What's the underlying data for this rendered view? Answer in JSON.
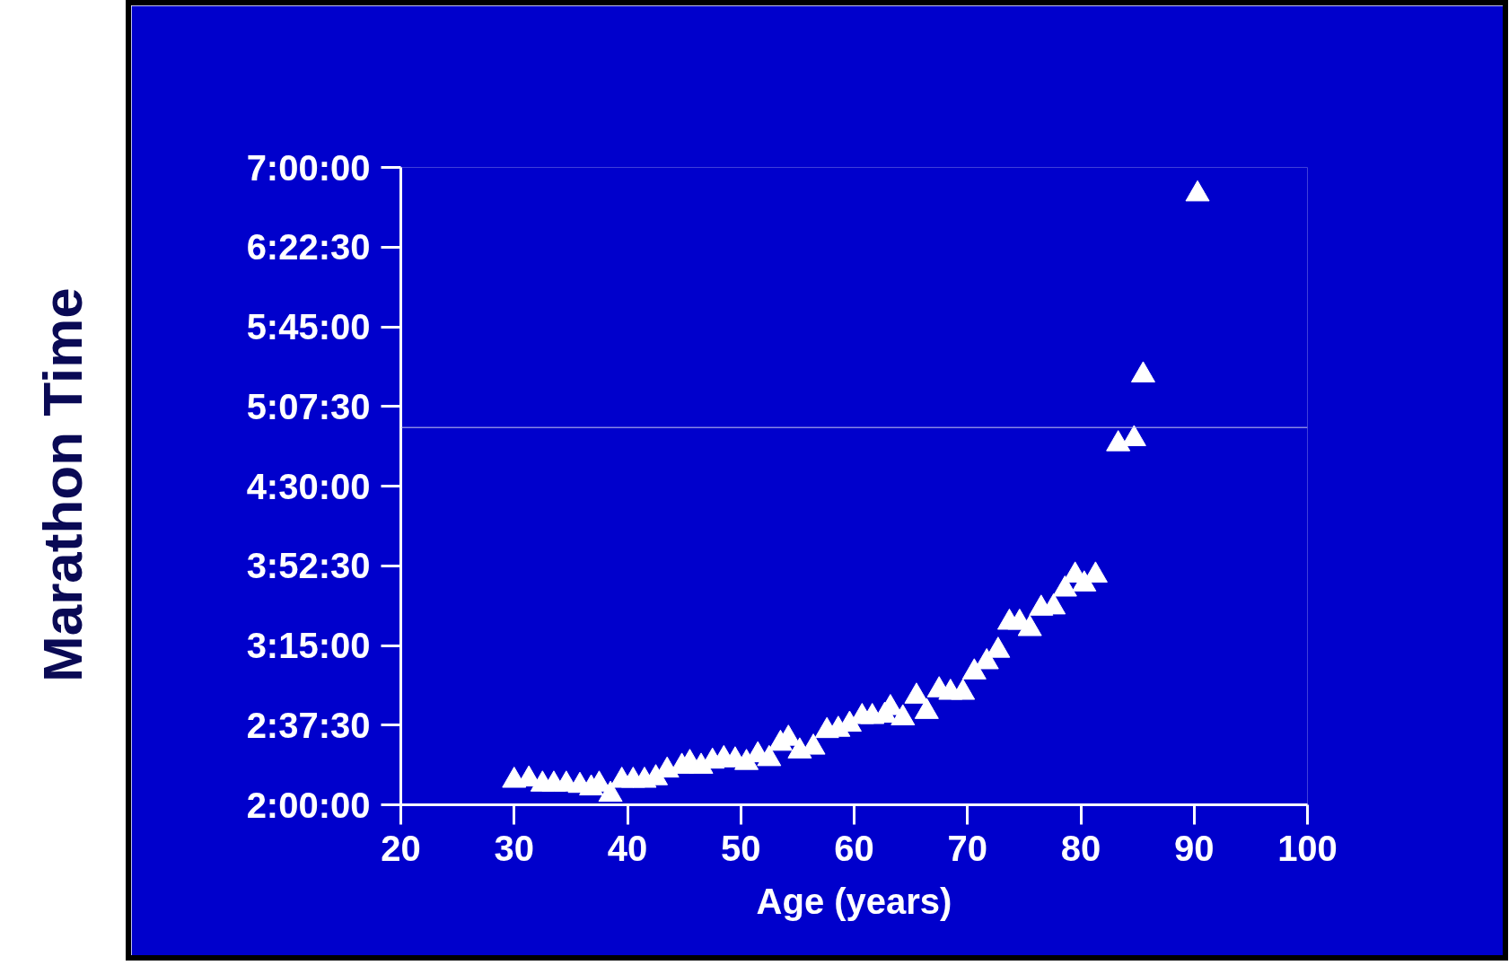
{
  "chart_data": {
    "type": "scatter",
    "xlabel": "Age (years)",
    "ylabel": "Marathon Time",
    "marker": "triangle",
    "grid": false,
    "xlim": [
      20,
      100
    ],
    "xticks": [
      20,
      30,
      40,
      50,
      60,
      70,
      80,
      90,
      100
    ],
    "ylim": [
      2,
      7
    ],
    "yticks": [
      {
        "value": 2,
        "label": "2:00:00"
      },
      {
        "value": 2.625,
        "label": "2:37:30"
      },
      {
        "value": 3.25,
        "label": "3:15:00"
      },
      {
        "value": 3.875,
        "label": "3:52:30"
      },
      {
        "value": 4.5,
        "label": "4:30:00"
      },
      {
        "value": 5.125,
        "label": "5:07:30"
      },
      {
        "value": 5.75,
        "label": "5:45:00"
      },
      {
        "value": 6.375,
        "label": "6:22:30"
      },
      {
        "value": 7,
        "label": "7:00:00"
      }
    ],
    "ref_lines": [
      {
        "axis": "y",
        "value": 4.96,
        "color": "#c8c8f0"
      }
    ],
    "series": [
      {
        "color": "#ffffff",
        "x": [
          30,
          31.3,
          32.5,
          33.5,
          34.6,
          35.8,
          36.8,
          37.5,
          38.5,
          39.5,
          40.5,
          41.5,
          42.5,
          43.5,
          44.8,
          45.5,
          46.5,
          47.5,
          48.5,
          49.5,
          50.5,
          51.5,
          52.5,
          53.5,
          54.2,
          55.2,
          56.4,
          57.6,
          58.6,
          59.6,
          60.7,
          61.6,
          62.7,
          63.2,
          64.3,
          65.5,
          66.4,
          67.5,
          68.5,
          69.6,
          70.6,
          71.7,
          72.7,
          73.7,
          74.6,
          75.5,
          76.5,
          77.6,
          78.6,
          79.5,
          80.3,
          81.3,
          83.3,
          84.7,
          85.5,
          90.3
        ],
        "values": [
          2.19,
          2.2,
          2.16,
          2.16,
          2.16,
          2.15,
          2.13,
          2.16,
          2.08,
          2.19,
          2.19,
          2.19,
          2.21,
          2.27,
          2.3,
          2.33,
          2.3,
          2.34,
          2.36,
          2.35,
          2.33,
          2.39,
          2.36,
          2.48,
          2.52,
          2.42,
          2.45,
          2.58,
          2.59,
          2.63,
          2.69,
          2.69,
          2.7,
          2.76,
          2.68,
          2.85,
          2.73,
          2.9,
          2.88,
          2.88,
          3.04,
          3.12,
          3.21,
          3.43,
          3.43,
          3.38,
          3.54,
          3.55,
          3.69,
          3.8,
          3.73,
          3.8,
          4.83,
          4.87,
          5.37,
          6.79
        ]
      }
    ]
  }
}
